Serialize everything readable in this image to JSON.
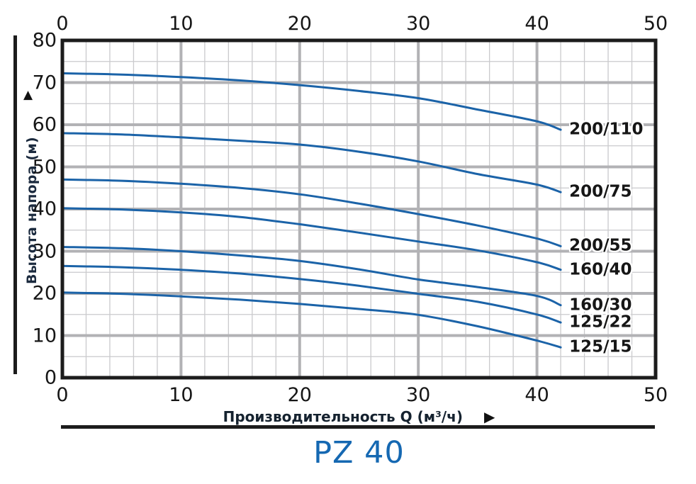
{
  "y_axis": {
    "label": "Высота напора (м)",
    "arrow": "▲",
    "ticks": [
      80,
      70,
      60,
      50,
      40,
      30,
      20,
      10,
      0
    ]
  },
  "x_axis": {
    "label": "Производительность Q (м³/ч)",
    "arrow": "▶",
    "ticks": [
      0,
      10,
      20,
      30,
      40,
      50
    ]
  },
  "colors": {
    "curve": "#1b63a8",
    "grid_major": "#b2b2b5",
    "grid_minor": "#cacacd",
    "axis_border": "#1c1c1c",
    "title_blue": "#1568b2",
    "label_text": "#161616"
  },
  "chart_data": {
    "type": "line",
    "title": "PZ 40",
    "xlabel": "Производительность Q (м³/ч)",
    "ylabel": "Высота напора (м)",
    "xlim": [
      0,
      50
    ],
    "ylim": [
      0,
      80
    ],
    "x_major_step": 10,
    "x_minor_step": 2,
    "y_major_step": 10,
    "y_minor_step": 5,
    "grid": true,
    "legend_position": "labels-at-line-ends",
    "x": [
      0,
      5,
      10,
      15,
      20,
      25,
      30,
      35,
      40,
      42
    ],
    "series": [
      {
        "name": "200/110",
        "values": [
          72.2,
          71.9,
          71.3,
          70.5,
          69.4,
          68.0,
          66.3,
          63.6,
          60.8,
          58.8
        ]
      },
      {
        "name": "200/75",
        "values": [
          58.0,
          57.7,
          57.0,
          56.2,
          55.3,
          53.6,
          51.3,
          48.3,
          45.8,
          44.0
        ]
      },
      {
        "name": "200/55",
        "values": [
          47.0,
          46.7,
          46.0,
          45.0,
          43.5,
          41.3,
          38.8,
          36.1,
          33.0,
          31.2
        ]
      },
      {
        "name": "160/40",
        "values": [
          40.2,
          39.9,
          39.2,
          38.1,
          36.4,
          34.4,
          32.3,
          30.2,
          27.4,
          25.6
        ]
      },
      {
        "name": "160/30",
        "values": [
          31.0,
          30.7,
          30.0,
          29.0,
          27.7,
          25.7,
          23.3,
          21.5,
          19.4,
          17.2
        ]
      },
      {
        "name": "125/22",
        "values": [
          26.5,
          26.2,
          25.6,
          24.7,
          23.4,
          21.8,
          19.9,
          18.0,
          15.0,
          13.1
        ]
      },
      {
        "name": "125/15",
        "values": [
          20.2,
          19.9,
          19.3,
          18.5,
          17.5,
          16.3,
          14.9,
          12.2,
          8.8,
          7.2
        ]
      }
    ]
  }
}
